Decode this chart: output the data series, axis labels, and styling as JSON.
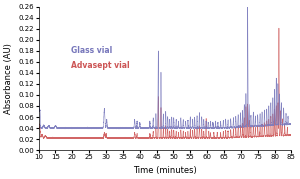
{
  "xlim": [
    10,
    85
  ],
  "ylim": [
    0.0,
    0.26
  ],
  "yticks": [
    0.0,
    0.02,
    0.04,
    0.06,
    0.08,
    0.1,
    0.12,
    0.14,
    0.16,
    0.18,
    0.2,
    0.22,
    0.24,
    0.26
  ],
  "xticks": [
    10,
    15,
    20,
    25,
    30,
    35,
    40,
    45,
    50,
    55,
    60,
    65,
    70,
    75,
    80,
    85
  ],
  "xlabel": "Time (minutes)",
  "ylabel": "Absorbance (AU)",
  "glass_color": "#7777bb",
  "advasept_color": "#cc5555",
  "glass_label": "Glass vial",
  "advasept_label": "Advasept vial",
  "background_color": "#ffffff",
  "label_fontsize": 6,
  "tick_fontsize": 5,
  "legend_fontsize": 5.5
}
